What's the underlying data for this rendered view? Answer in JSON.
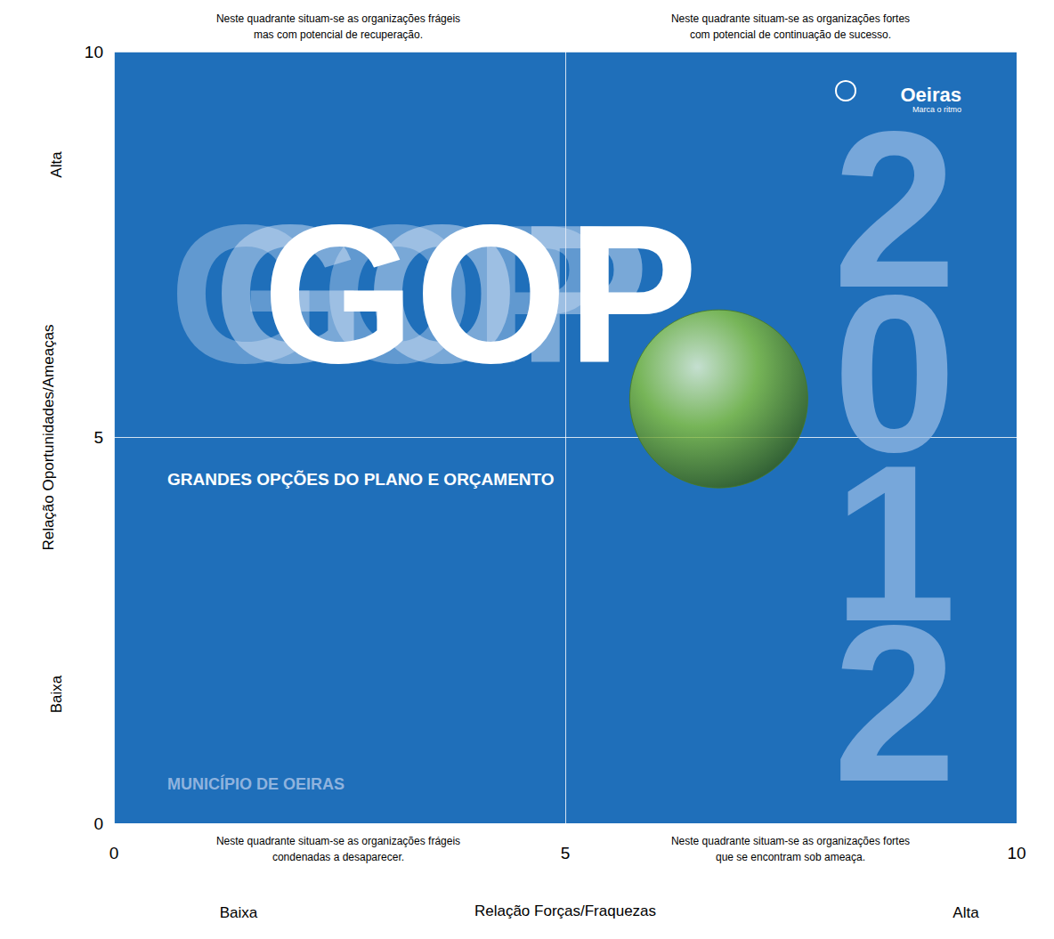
{
  "chart_data": {
    "type": "scatter",
    "x_label": "Relação Forças/Fraquezas",
    "y_label": "Relação Oportunidades/Ameaças",
    "x": [
      6.7
    ],
    "values": [
      5.5
    ],
    "color": "#8cc63f",
    "marker": "circle",
    "xlim": [
      0,
      10
    ],
    "ylim": [
      0,
      10
    ],
    "xticks": [
      0,
      5,
      10
    ],
    "yticks": [
      0,
      5,
      10
    ],
    "grid": true,
    "annotations": {
      "x_low": "Baixa",
      "x_high": "Alta",
      "y_low": "Baixa",
      "y_high": "Alta",
      "top_left": "Neste quadrante situam-se as organizações frágeis\nmas com potencial de recuperação.",
      "top_right": "Neste quadrante situam-se as organizações fortes\ncom potencial de continuação de sucesso.",
      "bottom_left": "Neste quadrante situam-se as organizações frágeis\ncondenadas a desaparecer.",
      "bottom_right": "Neste quadrante situam-se as organizações fortes\nque se encontram sob ameaça."
    },
    "background": {
      "title": "GOP",
      "subtitle": "GRANDES OPÇÕES DO PLANO E ORÇAMENTO",
      "year": "2012",
      "footer": "MUNICÍPIO DE OEIRAS",
      "brand": "Oeiras",
      "slogan": "Marca o ritmo"
    }
  }
}
